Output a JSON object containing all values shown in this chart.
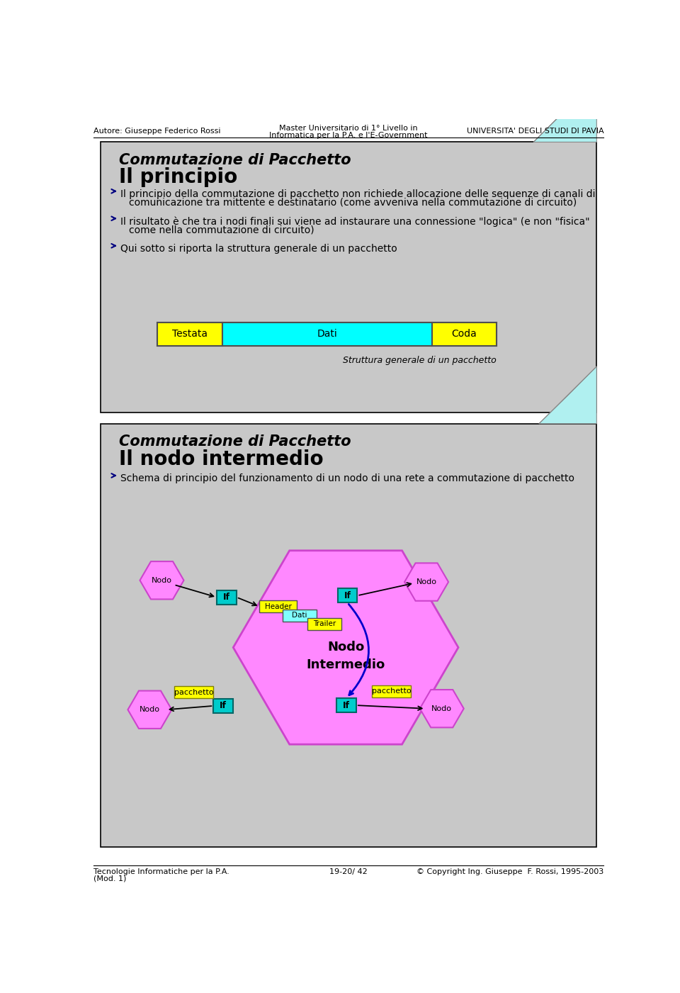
{
  "header_left": "Autore: Giuseppe Federico Rossi",
  "header_center_line1": "Master Universitario di 1° Livello in",
  "header_center_line2": "Informatica per la P.A. e l'E-Government",
  "header_right": "UNIVERSITA' DEGLI STUDI DI PAVIA",
  "footer_left_line1": "Tecnologie Informatiche per la P.A.",
  "footer_left_line2": "(Mod. 1)",
  "footer_center": "19-20/ 42",
  "footer_right": "© Copyright Ing. Giuseppe  F. Rossi, 1995-2003",
  "slide1_title_italic": "Commutazione di Pacchetto",
  "slide1_title_bold": "Il principio",
  "slide1_bullet1_line1": "Il principio della commutazione di pacchetto non richiede allocazione delle sequenze di canali di",
  "slide1_bullet1_line2": "comunicazione tra mittente e destinatario (come avveniva nella commutazione di circuito)",
  "slide1_bullet2_line1": "Il risultato è che tra i nodi finali sui viene ad instaurare una connessione \"logica\" (e non \"fisica\"",
  "slide1_bullet2_line2": "come nella commutazione di circuito)",
  "slide1_bullet3": "Qui sotto si riporta la struttura generale di un pacchetto",
  "packet_label1": "Testata",
  "packet_label2": "Dati",
  "packet_label3": "Coda",
  "packet_caption": "Struttura generale di un pacchetto",
  "slide2_title_italic": "Commutazione di Pacchetto",
  "slide2_title_bold": "Il nodo intermedio",
  "slide2_bullet1": "Schema di principio del funzionamento di un nodo di una rete a commutazione di pacchetto",
  "slide1_bg": "#c8c8c8",
  "slide2_bg": "#c8c8c8",
  "page_bg": "#ffffff",
  "yellow_color": "#ffff00",
  "cyan_color": "#00ffff",
  "bullet_color": "#000080",
  "if_color": "#00cccc",
  "hex_color": "#ff88ff",
  "pkt_header_color": "#ffff00",
  "pkt_dati_color": "#80ffff",
  "pkt_trailer_color": "#ffff00"
}
